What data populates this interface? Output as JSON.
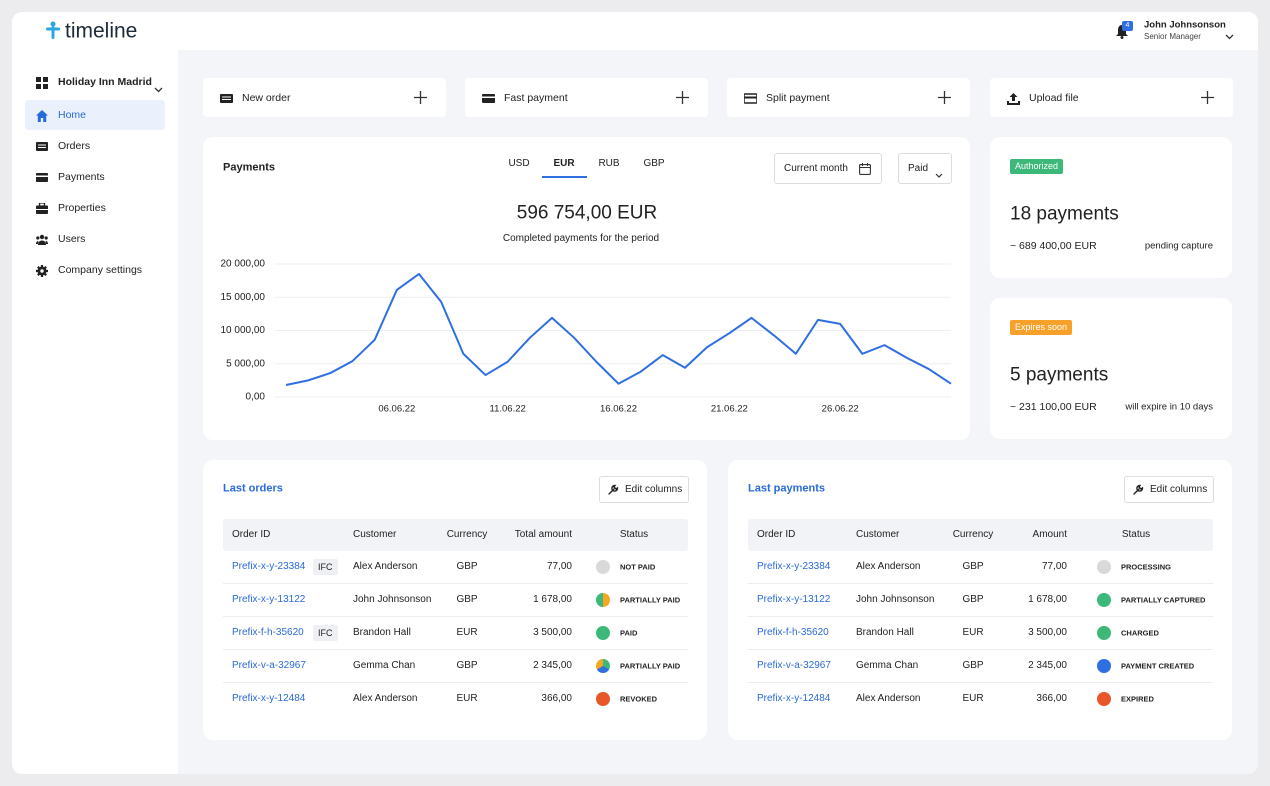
{
  "header": {
    "logo": "timeline",
    "notifications": "4",
    "user_name": "John Johnsonson",
    "user_role": "Senior Manager"
  },
  "sidebar": {
    "property": "Holiday Inn Madrid",
    "items": [
      "Home",
      "Orders",
      "Payments",
      "Properties",
      "Users",
      "Company settings"
    ],
    "active": 0
  },
  "actions": [
    "New order",
    "Fast payment",
    "Split payment",
    "Upload file"
  ],
  "chart_data": {
    "type": "line",
    "title": "Payments",
    "tabs": [
      "USD",
      "EUR",
      "RUB",
      "GBP"
    ],
    "active_tab": 1,
    "filters": [
      "Current month",
      "Paid"
    ],
    "total": "596 754,00 EUR",
    "subtitle": "Completed payments for the period",
    "categories": [
      null,
      null,
      null,
      null,
      null,
      "06.06.22",
      null,
      null,
      null,
      null,
      "11.06.22",
      null,
      null,
      null,
      null,
      "16.06.22",
      null,
      null,
      null,
      null,
      "21.06.22",
      null,
      null,
      null,
      null,
      "26.06.22",
      null,
      null,
      null,
      null,
      null
    ],
    "values": [
      1800,
      2500,
      3600,
      5400,
      8600,
      16100,
      18500,
      14300,
      6500,
      3300,
      5300,
      8900,
      11900,
      8900,
      5300,
      2000,
      3800,
      6300,
      4400,
      7500,
      9600,
      11900,
      9300,
      6500,
      11600,
      11000,
      6500,
      7800,
      5900,
      4200,
      2000
    ],
    "color": "#2f6fe0",
    "ylim": [
      0,
      20000
    ],
    "yticks": [
      {
        "value": 0,
        "label": "0,00"
      },
      {
        "value": 5000,
        "label": "5 000,00"
      },
      {
        "value": 10000,
        "label": "10 000,00"
      },
      {
        "value": 15000,
        "label": "15 000,00"
      },
      {
        "value": 20000,
        "label": "20 000,00"
      }
    ],
    "grid": true
  },
  "summary": [
    {
      "badge": "Authorized",
      "badge_color": "#3cb878",
      "count": "18 payments",
      "amount": "~ 689 400,00 EUR",
      "note": "pending capture"
    },
    {
      "badge": "Expires soon",
      "badge_color": "#f7a12b",
      "count": "5 payments",
      "amount": "~ 231 100,00 EUR",
      "note": "will expire in 10 days"
    }
  ],
  "orders": {
    "title": "Last orders",
    "button": "Edit columns",
    "columns": [
      "Order ID",
      "Customer",
      "Currency",
      "Total amount",
      "Status"
    ],
    "rows": [
      {
        "id": "Prefix-x-y-23384",
        "tag": "IFC",
        "customer": "Alex Anderson",
        "currency": "GBP",
        "amount": "77,00",
        "status": "NOT PAID",
        "colors": [
          "#d9d9d9"
        ]
      },
      {
        "id": "Prefix-x-y-13122",
        "customer": "John Johnsonson",
        "currency": "GBP",
        "amount": "1 678,00",
        "status": "PARTIALLY PAID",
        "colors": [
          "#f5a623",
          "#3cb878"
        ]
      },
      {
        "id": "Prefix-f-h-35620",
        "tag": "IFC",
        "customer": "Brandon Hall",
        "currency": "EUR",
        "amount": "3 500,00",
        "status": "PAID",
        "colors": [
          "#3cb878"
        ]
      },
      {
        "id": "Prefix-v-a-32967",
        "customer": "Gemma Chan",
        "currency": "GBP",
        "amount": "2 345,00",
        "status": "PARTIALLY PAID",
        "colors": [
          "#3cb878",
          "#2f6fe0",
          "#f5a623"
        ]
      },
      {
        "id": "Prefix-x-y-12484",
        "customer": "Alex Anderson",
        "currency": "EUR",
        "amount": "366,00",
        "status": "REVOKED",
        "colors": [
          "#e8562a"
        ]
      }
    ]
  },
  "payments": {
    "title": "Last payments",
    "button": "Edit columns",
    "columns": [
      "Order ID",
      "Customer",
      "Currency",
      "Amount",
      "Status"
    ],
    "rows": [
      {
        "id": "Prefix-x-y-23384",
        "customer": "Alex Anderson",
        "currency": "GBP",
        "amount": "77,00",
        "status": "PROCESSING",
        "colors": [
          "#d9d9d9"
        ]
      },
      {
        "id": "Prefix-x-y-13122",
        "customer": "John Johnsonson",
        "currency": "GBP",
        "amount": "1 678,00",
        "status": "PARTIALLY CAPTURED",
        "colors": [
          "#3cb878"
        ]
      },
      {
        "id": "Prefix-f-h-35620",
        "customer": "Brandon Hall",
        "currency": "EUR",
        "amount": "3 500,00",
        "status": "CHARGED",
        "colors": [
          "#3cb878"
        ]
      },
      {
        "id": "Prefix-v-a-32967",
        "customer": "Gemma Chan",
        "currency": "GBP",
        "amount": "2 345,00",
        "status": "PAYMENT CREATED",
        "colors": [
          "#2f6fe0"
        ]
      },
      {
        "id": "Prefix-x-y-12484",
        "customer": "Alex Anderson",
        "currency": "EUR",
        "amount": "366,00",
        "status": "EXPIRED",
        "colors": [
          "#e8562a"
        ]
      }
    ]
  }
}
